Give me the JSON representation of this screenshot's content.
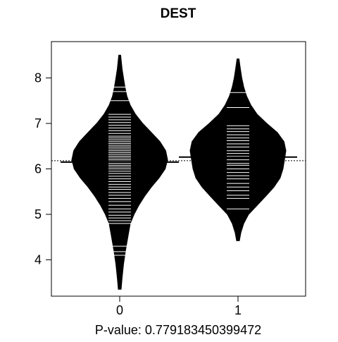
{
  "chart_data": {
    "type": "beanplot",
    "title": "DEST",
    "xlabel": "P-value: 0.779183450399472",
    "ylabel": "",
    "x_ticks": [
      "0",
      "1"
    ],
    "y_ticks": [
      "4",
      "5",
      "6",
      "7",
      "8"
    ],
    "y_tick_values": [
      4,
      5,
      6,
      7,
      8
    ],
    "ylim": [
      3.2,
      8.8
    ],
    "overall_mean": 6.18,
    "grid": false,
    "legend": "none",
    "colors": {
      "bean_fill": "#000000",
      "observation_line": "#ffffff",
      "axis": "#000000",
      "background": "#ffffff"
    },
    "groups": [
      {
        "name": "0",
        "mean": 6.15,
        "min": 3.35,
        "max": 8.5,
        "density": [
          [
            3.35,
            0.03
          ],
          [
            3.6,
            0.05
          ],
          [
            3.9,
            0.08
          ],
          [
            4.2,
            0.12
          ],
          [
            4.5,
            0.17
          ],
          [
            4.8,
            0.22
          ],
          [
            5.0,
            0.3
          ],
          [
            5.2,
            0.4
          ],
          [
            5.4,
            0.52
          ],
          [
            5.6,
            0.66
          ],
          [
            5.8,
            0.82
          ],
          [
            6.0,
            0.95
          ],
          [
            6.2,
            1.0
          ],
          [
            6.4,
            0.96
          ],
          [
            6.6,
            0.84
          ],
          [
            6.8,
            0.66
          ],
          [
            7.0,
            0.48
          ],
          [
            7.2,
            0.33
          ],
          [
            7.4,
            0.22
          ],
          [
            7.6,
            0.15
          ],
          [
            7.8,
            0.11
          ],
          [
            8.0,
            0.08
          ],
          [
            8.2,
            0.05
          ],
          [
            8.5,
            0.02
          ]
        ],
        "observations": [
          4.1,
          4.18,
          4.3,
          4.8,
          4.86,
          4.92,
          4.98,
          5.05,
          5.12,
          5.2,
          5.28,
          5.35,
          5.42,
          5.48,
          5.55,
          5.6,
          5.66,
          5.72,
          5.78,
          5.84,
          5.9,
          5.95,
          6.0,
          6.04,
          6.08,
          6.12,
          6.16,
          6.2,
          6.24,
          6.28,
          6.32,
          6.36,
          6.4,
          6.44,
          6.48,
          6.52,
          6.56,
          6.6,
          6.64,
          6.68,
          6.72,
          6.78,
          6.84,
          6.9,
          6.96,
          7.02,
          7.08,
          7.14,
          7.2,
          7.5,
          7.7,
          7.8
        ]
      },
      {
        "name": "1",
        "mean": 6.26,
        "min": 4.42,
        "max": 8.42,
        "density": [
          [
            4.42,
            0.03
          ],
          [
            4.6,
            0.06
          ],
          [
            4.8,
            0.12
          ],
          [
            5.0,
            0.22
          ],
          [
            5.2,
            0.4
          ],
          [
            5.4,
            0.58
          ],
          [
            5.6,
            0.75
          ],
          [
            5.8,
            0.88
          ],
          [
            6.0,
            0.94
          ],
          [
            6.2,
            0.97
          ],
          [
            6.4,
            1.0
          ],
          [
            6.6,
            0.96
          ],
          [
            6.8,
            0.82
          ],
          [
            7.0,
            0.6
          ],
          [
            7.2,
            0.4
          ],
          [
            7.4,
            0.27
          ],
          [
            7.6,
            0.18
          ],
          [
            7.8,
            0.12
          ],
          [
            8.0,
            0.08
          ],
          [
            8.2,
            0.05
          ],
          [
            8.42,
            0.02
          ]
        ],
        "observations": [
          5.12,
          5.35,
          5.42,
          5.52,
          5.6,
          5.68,
          5.78,
          5.85,
          5.92,
          6.0,
          6.08,
          6.12,
          6.2,
          6.28,
          6.34,
          6.4,
          6.48,
          6.55,
          6.62,
          6.68,
          6.75,
          6.82,
          6.88,
          6.95,
          7.35,
          7.68
        ]
      }
    ]
  }
}
